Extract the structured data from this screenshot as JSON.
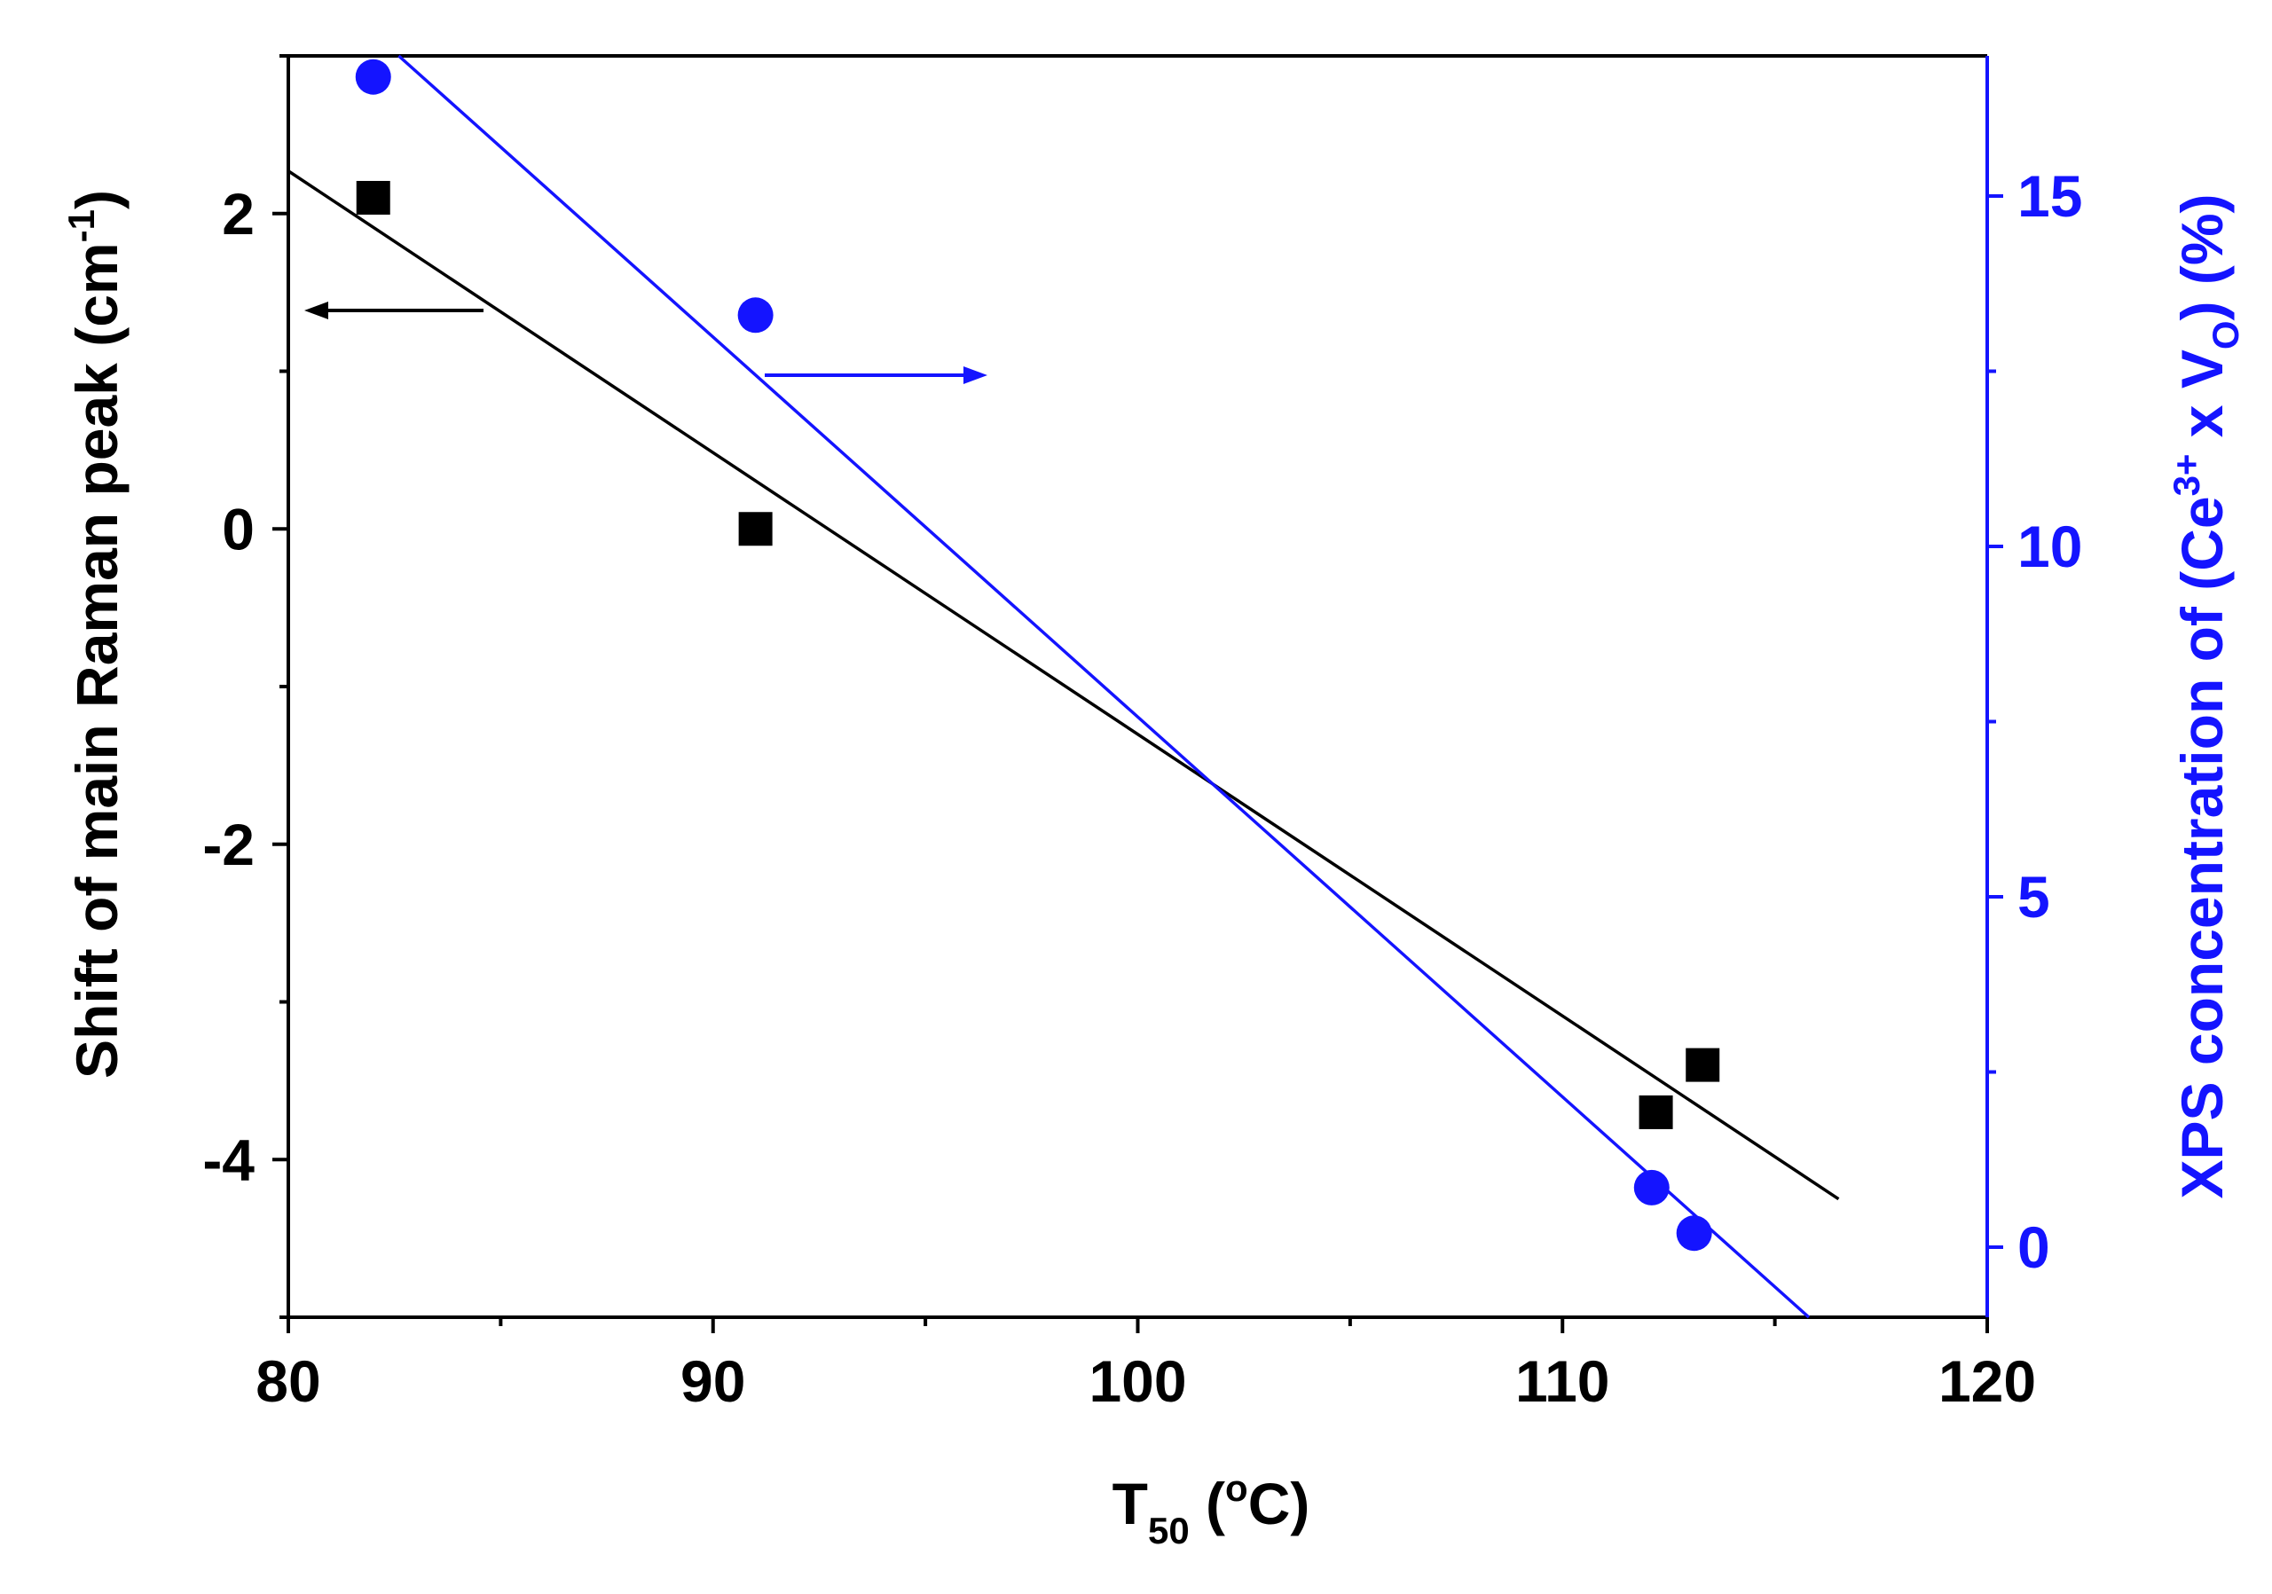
{
  "chart_data": {
    "type": "scatter",
    "title": "",
    "xlabel": {
      "main": "T",
      "sub": "50",
      "pre_sup": " (",
      "sup": "o",
      "post": "C)"
    },
    "ylabel_left": {
      "main": "Shift of main Raman peak (cm",
      "sup": "-1",
      "post": ")"
    },
    "ylabel_right": {
      "pre": "XPS concentration of (Ce",
      "sup": "3+",
      "mid": " x V",
      "sub": "O",
      "post": ") (%)"
    },
    "xlim": [
      80,
      120
    ],
    "ylim_left": [
      -5,
      3
    ],
    "ylim_right": [
      -1,
      17
    ],
    "x_ticks": [
      80,
      90,
      100,
      110,
      120
    ],
    "x_tick_labels": [
      "80",
      "90",
      "100",
      "110",
      "120"
    ],
    "y_left_ticks": [
      -4,
      -2,
      0,
      2
    ],
    "y_left_tick_labels": [
      "-4",
      "-2",
      "0",
      "2"
    ],
    "y_right_ticks": [
      0,
      5,
      10,
      15
    ],
    "y_right_tick_labels": [
      "0",
      "5",
      "10",
      "15"
    ],
    "series": [
      {
        "name": "Raman shift",
        "axis": "left",
        "marker": "square",
        "color": "#000000",
        "x": [
          82,
          91,
          112.2,
          113.3
        ],
        "y": [
          2.1,
          0.0,
          -3.7,
          -3.4
        ],
        "fit": {
          "x": [
            80,
            116.5
          ],
          "y": [
            2.27,
            -4.25
          ]
        }
      },
      {
        "name": "XPS concentration",
        "axis": "right",
        "marker": "circle",
        "color": "#1414ff",
        "x": [
          82,
          91,
          112.1,
          113.1
        ],
        "y": [
          16.7,
          13.3,
          0.85,
          0.2
        ],
        "fit": {
          "x": [
            82.6,
            115.8
          ],
          "y": [
            17.0,
            -1.0
          ]
        }
      }
    ],
    "annotations": [
      {
        "type": "arrow",
        "direction": "left",
        "series": "Raman shift",
        "color": "#000000"
      },
      {
        "type": "arrow",
        "direction": "right",
        "series": "XPS concentration",
        "color": "#1414ff"
      }
    ],
    "grid": false,
    "legend": "none"
  }
}
